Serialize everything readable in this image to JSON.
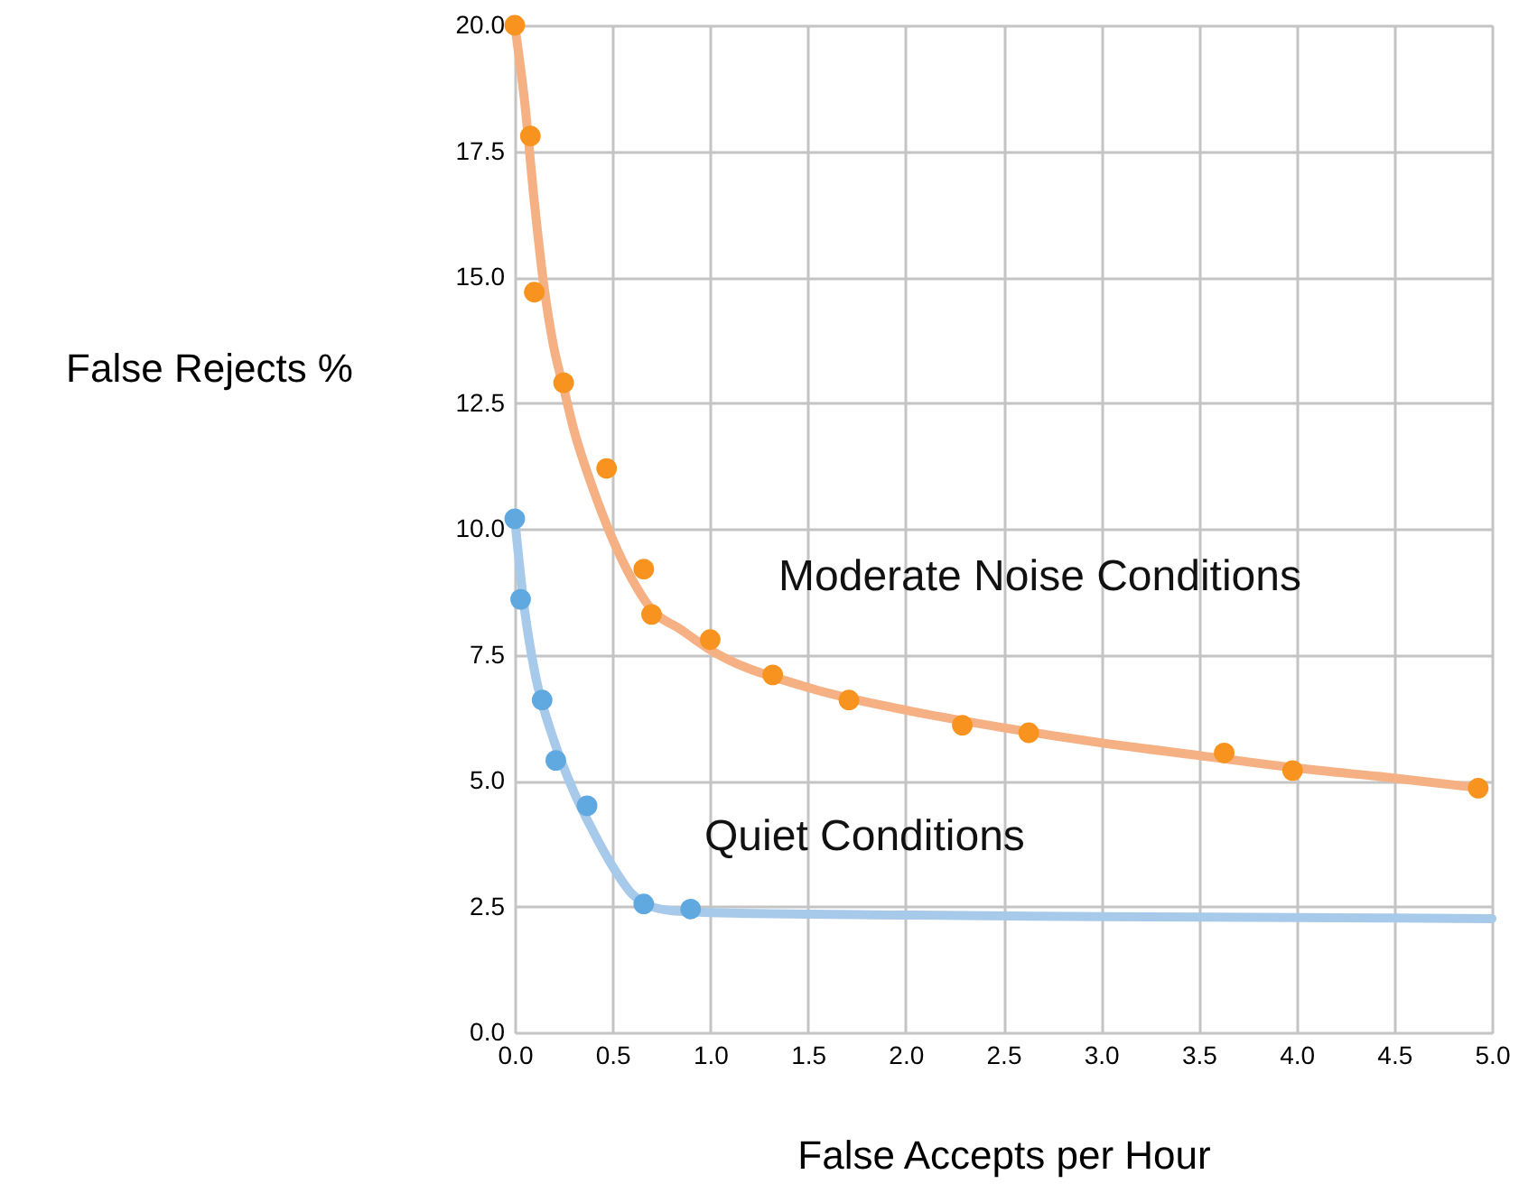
{
  "chart_data": {
    "type": "scatter",
    "xlabel": "False Accepts per Hour",
    "ylabel": "False Rejects %",
    "xlim": [
      0,
      5
    ],
    "ylim": [
      0,
      20
    ],
    "xticks": [
      {
        "value": 0,
        "label": "0.0"
      },
      {
        "value": 0.5,
        "label": "0.5"
      },
      {
        "value": 1,
        "label": "1.0"
      },
      {
        "value": 1.5,
        "label": "1.5"
      },
      {
        "value": 2,
        "label": "2.0"
      },
      {
        "value": 2.5,
        "label": "2.5"
      },
      {
        "value": 3,
        "label": "3.0"
      },
      {
        "value": 3.5,
        "label": "3.5"
      },
      {
        "value": 4,
        "label": "4.0"
      },
      {
        "value": 4.5,
        "label": "4.5"
      },
      {
        "value": 5,
        "label": "5.0"
      }
    ],
    "yticks": [
      {
        "value": 0,
        "label": "0.0"
      },
      {
        "value": 2.5,
        "label": "2.5"
      },
      {
        "value": 5,
        "label": "5.0"
      },
      {
        "value": 7.5,
        "label": "7.5"
      },
      {
        "value": 10,
        "label": "10.0"
      },
      {
        "value": 12.5,
        "label": "12.5"
      },
      {
        "value": 15,
        "label": "15.0"
      },
      {
        "value": 17.5,
        "label": "17.5"
      },
      {
        "value": 20,
        "label": "20.0"
      }
    ],
    "grid": true,
    "series": [
      {
        "type": "line",
        "color": "#f5b083",
        "marker": "none",
        "x": [
          0,
          0.05,
          0.1,
          0.15,
          0.2,
          0.25,
          0.3,
          0.4,
          0.5,
          0.6,
          0.7,
          0.85,
          1.0,
          1.5,
          2,
          2.5,
          3,
          3.5,
          4,
          4.5,
          4.95
        ],
        "values": [
          20.0,
          18.5,
          16.5,
          14.8,
          13.6,
          12.8,
          12.0,
          10.8,
          9.8,
          9.0,
          8.4,
          8.0,
          7.6,
          6.85,
          6.4,
          6.05,
          5.75,
          5.5,
          5.25,
          5.05,
          4.85
        ]
      },
      {
        "type": "line",
        "color": "#a7c9ea",
        "marker": "none",
        "x": [
          0,
          0.05,
          0.1,
          0.2,
          0.3,
          0.4,
          0.5,
          0.6,
          0.7,
          0.8,
          1,
          2,
          3,
          4,
          5
        ],
        "values": [
          10.2,
          8.4,
          7.2,
          5.8,
          4.8,
          4.0,
          3.3,
          2.75,
          2.5,
          2.42,
          2.38,
          2.33,
          2.3,
          2.28,
          2.26
        ]
      },
      {
        "color": "#f7931e",
        "marker": "circle",
        "x": [
          0,
          0.08,
          0.1,
          0.25,
          0.47,
          0.66,
          0.7,
          1.0,
          1.32,
          1.71,
          2.29,
          2.63,
          3.63,
          3.98,
          4.93
        ],
        "values": [
          20.0,
          17.8,
          14.7,
          12.9,
          11.2,
          9.2,
          8.3,
          7.8,
          7.1,
          6.6,
          6.1,
          5.95,
          5.55,
          5.2,
          4.85
        ]
      },
      {
        "color": "#5fa8e0",
        "marker": "circle",
        "x": [
          0,
          0.03,
          0.14,
          0.21,
          0.37,
          0.66,
          0.9
        ],
        "values": [
          10.2,
          8.6,
          6.6,
          5.4,
          4.5,
          2.55,
          2.45
        ]
      }
    ],
    "annotations": [
      "Moderate Noise Conditions",
      "Quiet Conditions"
    ]
  }
}
